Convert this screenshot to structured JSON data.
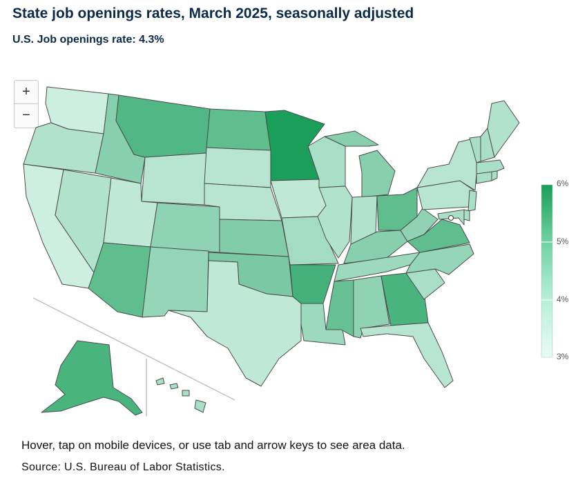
{
  "title": "State job openings rates, March 2025, seasonally adjusted",
  "subtitle": "U.S. Job openings rate: 4.3%",
  "zoom": {
    "in_label": "+",
    "out_label": "−"
  },
  "legend": {
    "ticks": [
      "6%",
      "5%",
      "4%",
      "3%"
    ],
    "min": 3,
    "max": 6,
    "color_low": "#e8fbf6",
    "color_high": "#1a9e5a"
  },
  "states": [
    {
      "id": "WA",
      "rate": 3.4
    },
    {
      "id": "OR",
      "rate": 3.8
    },
    {
      "id": "CA",
      "rate": 3.4
    },
    {
      "id": "NV",
      "rate": 3.8
    },
    {
      "id": "ID",
      "rate": 4.4
    },
    {
      "id": "MT",
      "rate": 5.2
    },
    {
      "id": "WY",
      "rate": 3.7
    },
    {
      "id": "UT",
      "rate": 3.6
    },
    {
      "id": "AZ",
      "rate": 5.0
    },
    {
      "id": "CO",
      "rate": 4.3
    },
    {
      "id": "NM",
      "rate": 4.2
    },
    {
      "id": "ND",
      "rate": 5.0
    },
    {
      "id": "SD",
      "rate": 3.7
    },
    {
      "id": "NE",
      "rate": 3.7
    },
    {
      "id": "KS",
      "rate": 4.5
    },
    {
      "id": "OK",
      "rate": 4.6
    },
    {
      "id": "TX",
      "rate": 3.6
    },
    {
      "id": "MN",
      "rate": 6.0
    },
    {
      "id": "IA",
      "rate": 3.6
    },
    {
      "id": "MO",
      "rate": 4.0
    },
    {
      "id": "AR",
      "rate": 5.4
    },
    {
      "id": "LA",
      "rate": 4.1
    },
    {
      "id": "WI",
      "rate": 3.9
    },
    {
      "id": "IL",
      "rate": 3.8
    },
    {
      "id": "MI",
      "rate": 4.4
    },
    {
      "id": "IN",
      "rate": 3.8
    },
    {
      "id": "OH",
      "rate": 5.0
    },
    {
      "id": "KY",
      "rate": 4.4
    },
    {
      "id": "TN",
      "rate": 4.1
    },
    {
      "id": "MS",
      "rate": 4.9
    },
    {
      "id": "AL",
      "rate": 4.3
    },
    {
      "id": "GA",
      "rate": 5.3
    },
    {
      "id": "FL",
      "rate": 3.7
    },
    {
      "id": "SC",
      "rate": 3.9
    },
    {
      "id": "NC",
      "rate": 4.2
    },
    {
      "id": "VA",
      "rate": 5.0
    },
    {
      "id": "WV",
      "rate": 4.3
    },
    {
      "id": "PA",
      "rate": 3.7
    },
    {
      "id": "NY",
      "rate": 3.7
    },
    {
      "id": "ME",
      "rate": 3.8
    },
    {
      "id": "AK",
      "rate": 5.3
    },
    {
      "id": "HI",
      "rate": 3.9
    }
  ],
  "note": "Hover, tap on mobile devices, or use tab and arrow keys to see area data.",
  "source": "Source: U.S. Bureau of Labor Statistics."
}
